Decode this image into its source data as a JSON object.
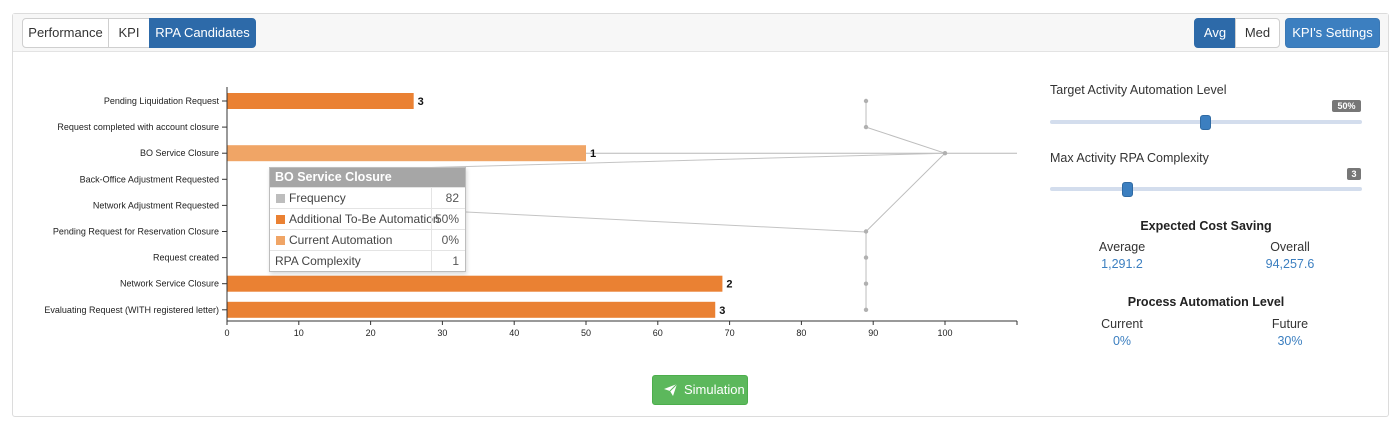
{
  "tabs": [
    {
      "label": "Performance",
      "active": false
    },
    {
      "label": "KPI",
      "active": false
    },
    {
      "label": "RPA Candidates",
      "active": true
    }
  ],
  "stat_toggle": {
    "avg_label": "Avg",
    "med_label": "Med",
    "selected": "Avg"
  },
  "kpi_settings_label": "KPI's Settings",
  "colors": {
    "full_bar": "#ea8133",
    "light_bar": "#f0a566",
    "frequency": "#bdbdbd",
    "accent": "#3c7fc0",
    "success": "#5cb85c"
  },
  "chart_data": {
    "type": "bar",
    "orientation": "horizontal",
    "categories": [
      "Pending Liquidation Request",
      "Request completed with account closure",
      "BO Service Closure",
      "Back-Office Adjustment Requested",
      "Network Adjustment Requested",
      "Pending Request for Reservation Closure",
      "Request created",
      "Network Service Closure",
      "Evaluating Request (WITH registered letter)"
    ],
    "values": [
      26,
      null,
      50,
      null,
      null,
      null,
      null,
      69,
      68
    ],
    "bar_labels": [
      "3",
      "",
      "1",
      "",
      "",
      "",
      "",
      "2",
      "3"
    ],
    "highlighted_index": 2,
    "frequency_points": [
      89,
      89,
      100,
      null,
      null,
      89,
      89,
      89,
      89
    ],
    "xlim": [
      0,
      110
    ],
    "xticks": [
      "0",
      "10",
      "20",
      "30",
      "40",
      "50",
      "60",
      "70",
      "80",
      "90",
      "100"
    ]
  },
  "tooltip": {
    "title": "BO Service Closure",
    "rows": [
      {
        "label": "Frequency",
        "value": "82",
        "swatch": "#bdbdbd"
      },
      {
        "label": "Additional To-Be Automation",
        "value": "50%",
        "swatch": "#ea8133"
      },
      {
        "label": "Current Automation",
        "value": "0%",
        "swatch": "#f0a566"
      },
      {
        "label": "RPA Complexity",
        "value": "1",
        "swatch": ""
      }
    ]
  },
  "settings": {
    "target_label": "Target Activity Automation Level",
    "target_value": "50%",
    "target_fraction": 0.5,
    "complexity_label": "Max Activity RPA Complexity",
    "complexity_value": "3",
    "complexity_fraction": 0.25
  },
  "cost_saving": {
    "title": "Expected Cost Saving",
    "average_label": "Average",
    "average_value": "1,291.2",
    "overall_label": "Overall",
    "overall_value": "94,257.6"
  },
  "automation_level": {
    "title": "Process Automation Level",
    "current_label": "Current",
    "current_value": "0%",
    "future_label": "Future",
    "future_value": "30%"
  },
  "simulation_label": "Simulation"
}
